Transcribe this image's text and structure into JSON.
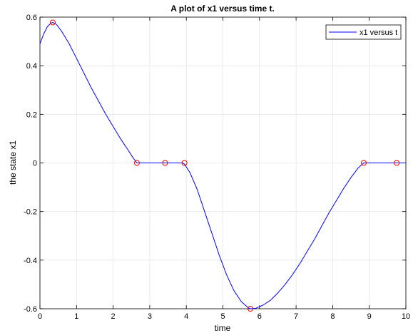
{
  "chart_data": {
    "type": "line",
    "title": "A plot of x1 versus time t.",
    "xlabel": "time",
    "ylabel": "the state x1",
    "xlim": [
      0,
      10
    ],
    "ylim": [
      -0.6,
      0.6
    ],
    "x_ticks": [
      0,
      1,
      2,
      3,
      4,
      5,
      6,
      7,
      8,
      9,
      10
    ],
    "x_tick_labels": [
      "0",
      "1",
      "2",
      "3",
      "4",
      "5",
      "6",
      "7",
      "8",
      "9",
      "10"
    ],
    "y_ticks": [
      -0.6,
      -0.4,
      -0.2,
      0,
      0.2,
      0.4,
      0.6
    ],
    "y_tick_labels": [
      "-0.6",
      "-0.4",
      "-0.2",
      "0",
      "0.2",
      "0.4",
      "0.6"
    ],
    "grid": true,
    "legend_position": "top-right",
    "series": [
      {
        "name": "x1 versus t",
        "color": "#0000ff",
        "x": [
          0,
          0.1,
          0.2,
          0.3,
          0.35,
          0.45,
          0.6,
          0.8,
          1.0,
          1.2,
          1.4,
          1.6,
          1.8,
          2.0,
          2.2,
          2.4,
          2.55,
          2.65,
          3.0,
          3.4,
          3.9,
          3.95,
          4.1,
          4.3,
          4.5,
          4.7,
          4.9,
          5.1,
          5.3,
          5.5,
          5.7,
          5.75,
          5.9,
          6.1,
          6.3,
          6.5,
          6.7,
          6.9,
          7.1,
          7.3,
          7.5,
          7.7,
          7.9,
          8.1,
          8.3,
          8.5,
          8.7,
          8.85,
          9.3,
          9.75,
          10.0
        ],
        "y": [
          0.49,
          0.53,
          0.56,
          0.575,
          0.578,
          0.57,
          0.54,
          0.49,
          0.43,
          0.37,
          0.31,
          0.255,
          0.2,
          0.15,
          0.1,
          0.055,
          0.02,
          0.0,
          0.0,
          0.0,
          0.0,
          -0.005,
          -0.04,
          -0.11,
          -0.2,
          -0.29,
          -0.38,
          -0.46,
          -0.525,
          -0.57,
          -0.597,
          -0.6,
          -0.598,
          -0.585,
          -0.565,
          -0.535,
          -0.5,
          -0.46,
          -0.415,
          -0.365,
          -0.315,
          -0.26,
          -0.205,
          -0.155,
          -0.105,
          -0.06,
          -0.02,
          0.0,
          0.0,
          0.0,
          0.0
        ]
      }
    ],
    "markers": {
      "color": "#ff0000",
      "shape": "circle",
      "x": [
        0.35,
        2.65,
        3.42,
        3.95,
        5.75,
        8.85,
        9.75
      ],
      "y": [
        0.578,
        0.0,
        0.0,
        0.0,
        -0.6,
        0.0,
        0.0
      ]
    }
  }
}
